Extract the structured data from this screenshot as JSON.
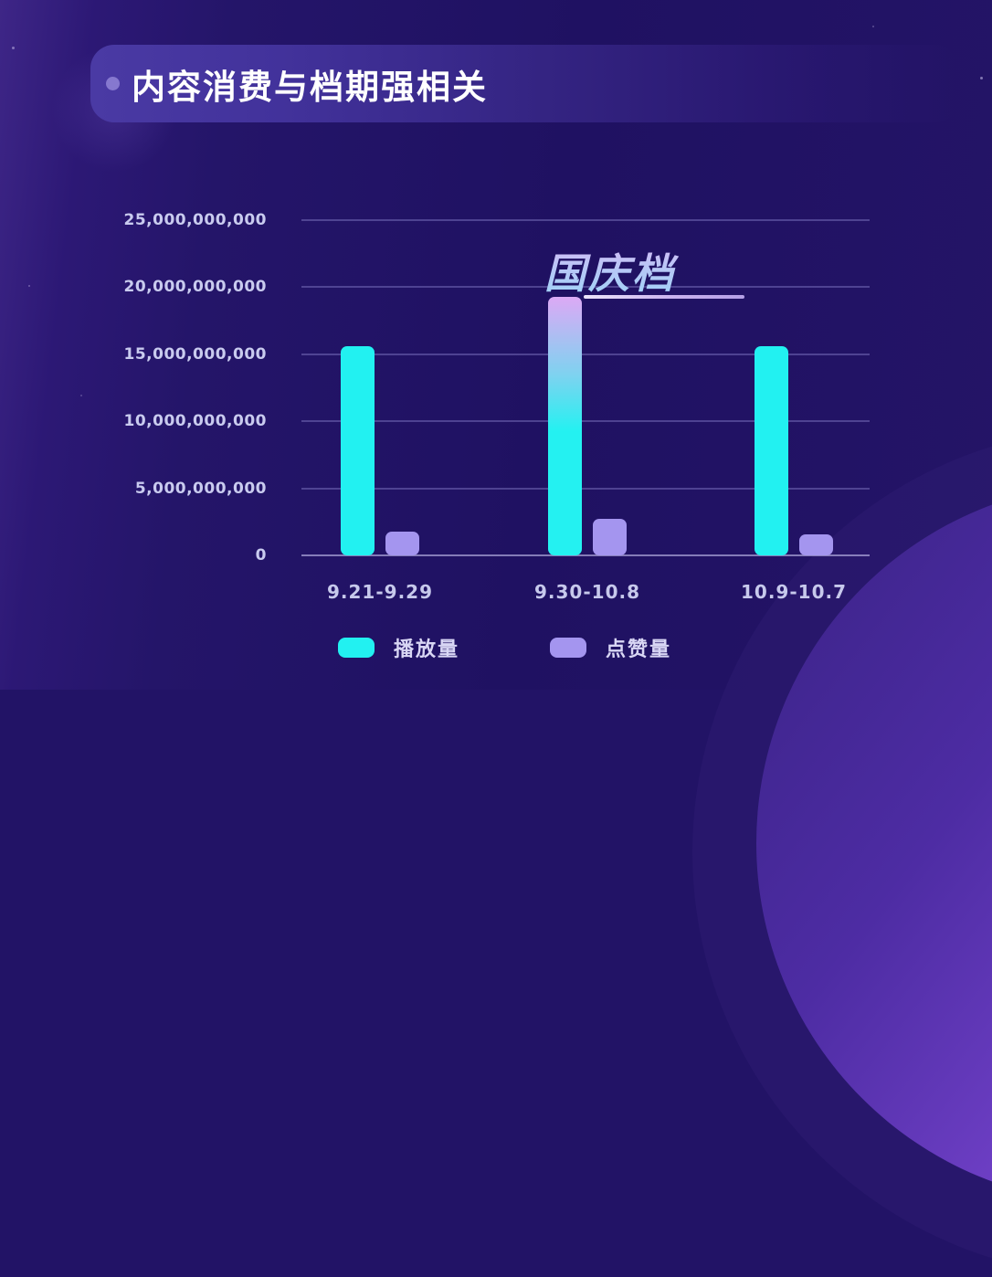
{
  "page": {
    "title_banner": {
      "text": "内容消费与档期强相关"
    }
  },
  "colors": {
    "play_series": "#22f1f1",
    "like_series": "#a495ef",
    "highlight_gradient_top": "#dca9f5",
    "highlight_gradient_mid": "#7fd2f0",
    "highlight_gradient_bottom": "#24f1f1",
    "background": "#221366",
    "accent_circle": "#a469ef"
  },
  "chart_data": {
    "type": "bar",
    "title": "内容消费与档期强相关",
    "categories": [
      "9.21-9.29",
      "9.30-10.8",
      "10.9-10.7"
    ],
    "series": [
      {
        "name": "播放量",
        "color": "#22f1f1",
        "values": [
          15600000000,
          19300000000,
          15600000000
        ],
        "highlight": {
          "index": 1,
          "gradient": [
            "#dca9f5",
            "#7fd2f0",
            "#24f1f1"
          ]
        }
      },
      {
        "name": "点赞量",
        "color": "#a495ef",
        "values": [
          1750000000,
          2750000000,
          1600000000
        ]
      }
    ],
    "annotation": {
      "text": "国庆档",
      "category_index": 1,
      "series_index": 0
    },
    "xlabel": "",
    "ylabel": "",
    "ylim": [
      0,
      25000000000
    ],
    "ytick_step": 5000000000,
    "ytick_labels": [
      "0",
      "5,000,000,000",
      "10,000,000,000",
      "15,000,000,000",
      "20,000,000,000",
      "25,000,000,000"
    ],
    "grid": true,
    "legend_position": "bottom"
  }
}
